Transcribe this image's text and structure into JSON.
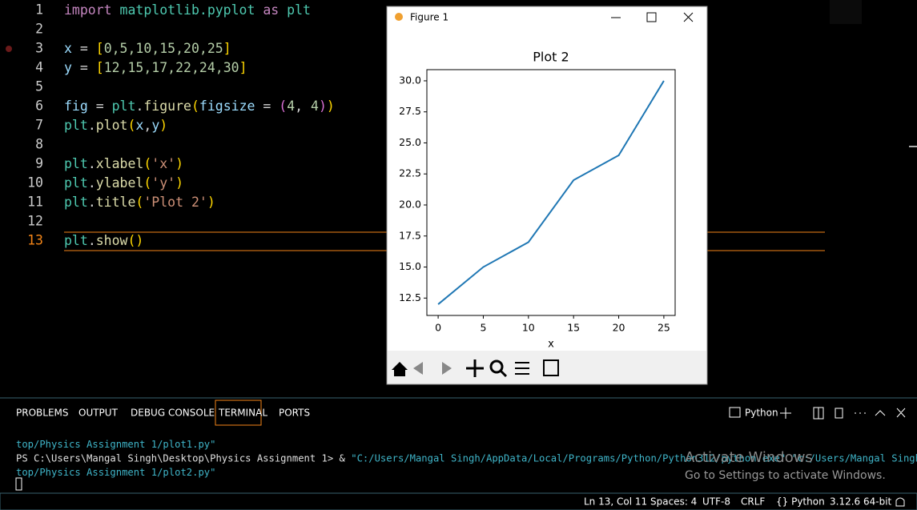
{
  "editor": {
    "lines": [
      {
        "number": 1,
        "tokens": [
          {
            "text": "import",
            "color": "#c586c0"
          },
          {
            "text": " matplotlib.pyplot ",
            "color": "#4ec9b0"
          },
          {
            "text": "as",
            "color": "#c586c0"
          },
          {
            "text": " plt",
            "color": "#4ec9b0"
          }
        ]
      },
      {
        "number": 2,
        "tokens": []
      },
      {
        "number": 3,
        "tokens": [
          {
            "text": "x",
            "color": "#9cdcfe"
          },
          {
            "text": " = ",
            "color": "#d4d4d4"
          },
          {
            "text": "[",
            "color": "#ffd700"
          },
          {
            "text": "0,5,10,15,20,25",
            "color": "#b5cea8"
          },
          {
            "text": "]",
            "color": "#ffd700"
          }
        ],
        "breakpoint": true
      },
      {
        "number": 4,
        "tokens": [
          {
            "text": "y",
            "color": "#9cdcfe"
          },
          {
            "text": " = ",
            "color": "#d4d4d4"
          },
          {
            "text": "[",
            "color": "#ffd700"
          },
          {
            "text": "12,15,17,22,24,30",
            "color": "#b5cea8"
          },
          {
            "text": "]",
            "color": "#ffd700"
          }
        ]
      },
      {
        "number": 5,
        "tokens": []
      },
      {
        "number": 6,
        "tokens": [
          {
            "text": "fig",
            "color": "#9cdcfe"
          },
          {
            "text": " = ",
            "color": "#d4d4d4"
          },
          {
            "text": "plt",
            "color": "#4ec9b0"
          },
          {
            "text": ".",
            "color": "#d4d4d4"
          },
          {
            "text": "figure",
            "color": "#dcdcaa"
          },
          {
            "text": "(",
            "color": "#ffd700"
          },
          {
            "text": "figsize",
            "color": "#9cdcfe"
          },
          {
            "text": " = ",
            "color": "#d4d4d4"
          },
          {
            "text": "(",
            "color": "#da70d6"
          },
          {
            "text": "4",
            "color": "#b5cea8"
          },
          {
            "text": ", ",
            "color": "#d4d4d4"
          },
          {
            "text": "4",
            "color": "#b5cea8"
          },
          {
            "text": ")",
            "color": "#da70d6"
          },
          {
            "text": ")",
            "color": "#ffd700"
          }
        ]
      },
      {
        "number": 7,
        "tokens": [
          {
            "text": "plt",
            "color": "#4ec9b0"
          },
          {
            "text": ".",
            "color": "#d4d4d4"
          },
          {
            "text": "plot",
            "color": "#dcdcaa"
          },
          {
            "text": "(",
            "color": "#ffd700"
          },
          {
            "text": "x",
            "color": "#9cdcfe"
          },
          {
            "text": ",",
            "color": "#d4d4d4"
          },
          {
            "text": "y",
            "color": "#9cdcfe"
          },
          {
            "text": ")",
            "color": "#ffd700"
          }
        ]
      },
      {
        "number": 8,
        "tokens": []
      },
      {
        "number": 9,
        "tokens": [
          {
            "text": "plt",
            "color": "#4ec9b0"
          },
          {
            "text": ".",
            "color": "#d4d4d4"
          },
          {
            "text": "xlabel",
            "color": "#dcdcaa"
          },
          {
            "text": "(",
            "color": "#ffd700"
          },
          {
            "text": "'x'",
            "color": "#ce9178"
          },
          {
            "text": ")",
            "color": "#ffd700"
          }
        ]
      },
      {
        "number": 10,
        "tokens": [
          {
            "text": "plt",
            "color": "#4ec9b0"
          },
          {
            "text": ".",
            "color": "#d4d4d4"
          },
          {
            "text": "ylabel",
            "color": "#dcdcaa"
          },
          {
            "text": "(",
            "color": "#ffd700"
          },
          {
            "text": "'y'",
            "color": "#ce9178"
          },
          {
            "text": ")",
            "color": "#ffd700"
          }
        ]
      },
      {
        "number": 11,
        "tokens": [
          {
            "text": "plt",
            "color": "#4ec9b0"
          },
          {
            "text": ".",
            "color": "#d4d4d4"
          },
          {
            "text": "title",
            "color": "#dcdcaa"
          },
          {
            "text": "(",
            "color": "#ffd700"
          },
          {
            "text": "'Plot 2'",
            "color": "#ce9178"
          },
          {
            "text": ")",
            "color": "#ffd700"
          }
        ]
      },
      {
        "number": 12,
        "tokens": []
      },
      {
        "number": 13,
        "tokens": [
          {
            "text": "plt",
            "color": "#4ec9b0"
          },
          {
            "text": ".",
            "color": "#d4d4d4"
          },
          {
            "text": "show",
            "color": "#dcdcaa"
          },
          {
            "text": "()",
            "color": "#ffd700"
          }
        ],
        "active": true
      }
    ]
  },
  "figure_window": {
    "title": "Figure 1"
  },
  "chart_data": {
    "type": "line",
    "title": "Plot 2",
    "xlabel": "x",
    "x": [
      0,
      5,
      10,
      15,
      20,
      25
    ],
    "values": [
      12,
      15,
      17,
      22,
      24,
      30
    ],
    "color": "#1f77b4",
    "xlim": [
      -1.25,
      26.25
    ],
    "ylim": [
      11.1,
      30.9
    ],
    "xticks": [
      0,
      5,
      10,
      15,
      20,
      25
    ],
    "yticks": [
      12.5,
      {
        "value": 15,
        "label": "15.0"
      },
      17.5,
      {
        "value": 20,
        "label": "20.0"
      },
      22.5,
      {
        "value": 25,
        "label": "25.0"
      },
      27.5,
      {
        "value": 30,
        "label": "30.0"
      }
    ],
    "grid": false
  },
  "panel": {
    "tabs": [
      "PROBLEMS",
      "OUTPUT",
      "DEBUG CONSOLE",
      "TERMINAL",
      "PORTS"
    ],
    "active_tab": "TERMINAL",
    "profile": "Python"
  },
  "terminal": {
    "lines": [
      [
        {
          "text": "top/Physics Assignment 1/plot1.py\"",
          "color": "#3fb5c9"
        }
      ],
      [
        {
          "text": "PS C:\\Users\\Mangal Singh\\Desktop\\Physics Assignment 1> & ",
          "color": "#e0e0e0"
        },
        {
          "text": "\"C:/Users/Mangal Singh/AppData/Local/Programs/Python/Python312/python.exe\" \"c:/Users/Mangal Singh/Desk",
          "color": "#3fb5c9"
        }
      ],
      [
        {
          "text": "top/Physics Assignment 1/plot2.py\"",
          "color": "#3fb5c9"
        }
      ]
    ]
  },
  "watermark": {
    "title": "Activate Windows",
    "subtitle": "Go to Settings to activate Windows."
  },
  "status_bar": {
    "items": [
      "Ln 13, Col 11",
      "Spaces: 4",
      "UTF-8",
      "CRLF",
      "{} Python",
      "3.12.6 64-bit"
    ]
  }
}
